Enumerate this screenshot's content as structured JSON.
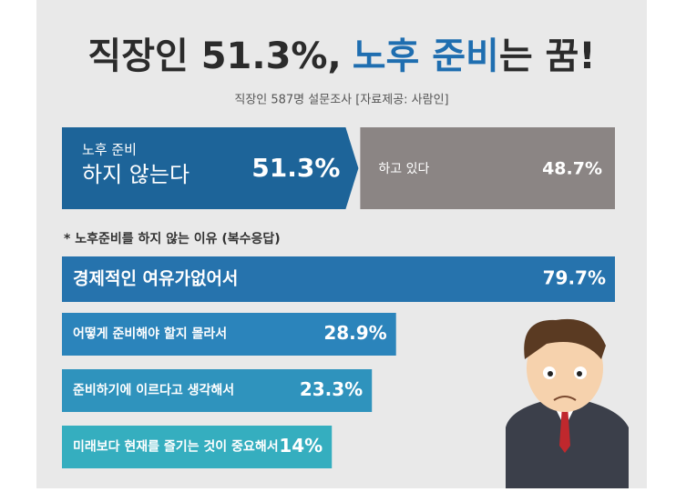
{
  "chart_data": [
    {
      "type": "split-bar",
      "title": [
        "직장인 51.3%,",
        "노후 준비",
        "는 꿈!"
      ],
      "subtitle": "직장인 587명 설문조사 [자료제공: 사람인]",
      "xlim": [
        0,
        100
      ],
      "series": [
        {
          "name": [
            "노후 준비",
            "하지 않는다"
          ],
          "color": "#1d6499",
          "values": [
            51.3
          ],
          "value_labels": [
            "51.3%"
          ]
        },
        {
          "name": [
            "하고 있다"
          ],
          "color": "#8b8584",
          "values": [
            48.7
          ],
          "value_labels": [
            "48.7%"
          ]
        }
      ]
    },
    {
      "type": "bar",
      "title": "* 노후준비를 하지 않는 이유 (복수응답)",
      "categories": [
        "경제적인 여유가없어서",
        "어떻게 준비해야 할지 몰라서",
        "준비하기에 이르다고 생각해서",
        "미래보다 현재를 즐기는 것이 중요해서"
      ],
      "values": [
        79.7,
        28.9,
        23.3,
        14
      ],
      "value_labels": [
        "79.7%",
        "28.9%",
        "23.3%",
        "14%"
      ],
      "colors": [
        "#2673ad",
        "#2b84bb",
        "#2f93bd",
        "#35aebf"
      ]
    }
  ]
}
